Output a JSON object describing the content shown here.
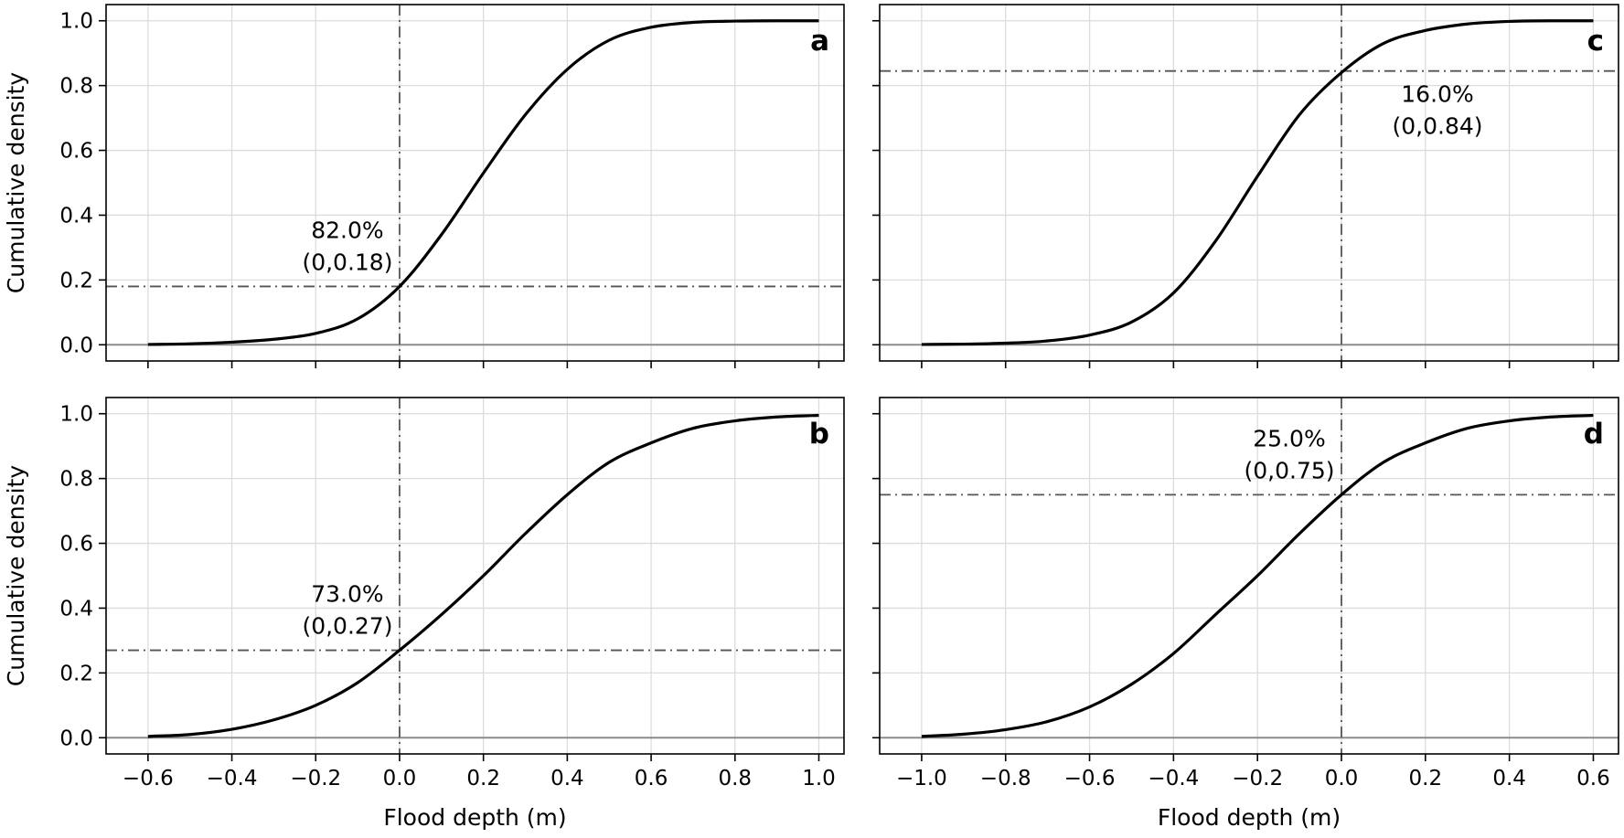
{
  "chart_data": [
    {
      "id": "a",
      "type": "line",
      "panel_label": "a",
      "xlabel": "",
      "ylabel": "Cumulative density",
      "xlim": [
        -0.7,
        1.06
      ],
      "ylim": [
        -0.05,
        1.05
      ],
      "xticks": [
        -0.6,
        -0.4,
        -0.2,
        0.0,
        0.2,
        0.4,
        0.6,
        0.8,
        1.0
      ],
      "xtick_labels": [
        "",
        "",
        "",
        "",
        "",
        "",
        "",
        "",
        ""
      ],
      "yticks": [
        0.0,
        0.2,
        0.4,
        0.6,
        0.8,
        1.0
      ],
      "ytick_labels": [
        "0.0",
        "0.2",
        "0.4",
        "0.6",
        "0.8",
        "1.0"
      ],
      "grid": true,
      "series": [
        {
          "x": [
            -0.6,
            -0.5,
            -0.4,
            -0.3,
            -0.2,
            -0.1,
            0.0,
            0.1,
            0.2,
            0.3,
            0.4,
            0.5,
            0.6,
            0.7,
            0.8,
            0.9,
            1.0
          ],
          "y": [
            0.001,
            0.003,
            0.008,
            0.017,
            0.035,
            0.08,
            0.18,
            0.34,
            0.53,
            0.71,
            0.85,
            0.94,
            0.98,
            0.995,
            0.999,
            1.0,
            1.0
          ]
        }
      ],
      "threshold_x": 0.0,
      "threshold_y": 0.18,
      "annotation": {
        "percent": "82.0%",
        "point": "(0,0.18)",
        "position": "above-left"
      }
    },
    {
      "id": "b",
      "type": "line",
      "panel_label": "b",
      "xlabel": "Flood depth (m)",
      "ylabel": "Cumulative density",
      "xlim": [
        -0.7,
        1.06
      ],
      "ylim": [
        -0.05,
        1.05
      ],
      "xticks": [
        -0.6,
        -0.4,
        -0.2,
        0.0,
        0.2,
        0.4,
        0.6,
        0.8,
        1.0
      ],
      "xtick_labels": [
        "−0.6",
        "−0.4",
        "−0.2",
        "0.0",
        "0.2",
        "0.4",
        "0.6",
        "0.8",
        "1.0"
      ],
      "yticks": [
        0.0,
        0.2,
        0.4,
        0.6,
        0.8,
        1.0
      ],
      "ytick_labels": [
        "0.0",
        "0.2",
        "0.4",
        "0.6",
        "0.8",
        "1.0"
      ],
      "grid": true,
      "series": [
        {
          "x": [
            -0.6,
            -0.5,
            -0.4,
            -0.3,
            -0.2,
            -0.1,
            0.0,
            0.1,
            0.2,
            0.3,
            0.4,
            0.5,
            0.6,
            0.7,
            0.8,
            0.9,
            1.0
          ],
          "y": [
            0.004,
            0.01,
            0.026,
            0.055,
            0.1,
            0.17,
            0.27,
            0.38,
            0.5,
            0.63,
            0.75,
            0.85,
            0.91,
            0.955,
            0.978,
            0.99,
            0.995
          ]
        }
      ],
      "threshold_x": 0.0,
      "threshold_y": 0.27,
      "annotation": {
        "percent": "73.0%",
        "point": "(0,0.27)",
        "position": "above-left"
      }
    },
    {
      "id": "c",
      "type": "line",
      "panel_label": "c",
      "xlabel": "",
      "ylabel": "",
      "xlim": [
        -1.1,
        0.66
      ],
      "ylim": [
        -0.05,
        1.05
      ],
      "xticks": [
        -1.0,
        -0.8,
        -0.6,
        -0.4,
        -0.2,
        0.0,
        0.2,
        0.4,
        0.6
      ],
      "xtick_labels": [
        "",
        "",
        "",
        "",
        "",
        "",
        "",
        "",
        ""
      ],
      "yticks": [
        0.0,
        0.2,
        0.4,
        0.6,
        0.8,
        1.0
      ],
      "ytick_labels": [
        "",
        "",
        "",
        "",
        "",
        ""
      ],
      "grid": true,
      "series": [
        {
          "x": [
            -1.0,
            -0.9,
            -0.8,
            -0.7,
            -0.6,
            -0.5,
            -0.4,
            -0.3,
            -0.2,
            -0.1,
            0.0,
            0.1,
            0.2,
            0.3,
            0.4,
            0.5,
            0.6
          ],
          "y": [
            0.001,
            0.002,
            0.005,
            0.012,
            0.03,
            0.07,
            0.16,
            0.32,
            0.52,
            0.71,
            0.84,
            0.93,
            0.97,
            0.99,
            0.998,
            1.0,
            1.0
          ]
        }
      ],
      "threshold_x": 0.0,
      "threshold_y": 0.845,
      "annotation": {
        "percent": "16.0%",
        "point": "(0,0.84)",
        "position": "below-right"
      }
    },
    {
      "id": "d",
      "type": "line",
      "panel_label": "d",
      "xlabel": "Flood depth (m)",
      "ylabel": "",
      "xlim": [
        -1.1,
        0.66
      ],
      "ylim": [
        -0.05,
        1.05
      ],
      "xticks": [
        -1.0,
        -0.8,
        -0.6,
        -0.4,
        -0.2,
        0.0,
        0.2,
        0.4,
        0.6
      ],
      "xtick_labels": [
        "−1.0",
        "−0.8",
        "−0.6",
        "−0.4",
        "−0.2",
        "0.0",
        "0.2",
        "0.4",
        "0.6"
      ],
      "yticks": [
        0.0,
        0.2,
        0.4,
        0.6,
        0.8,
        1.0
      ],
      "ytick_labels": [
        "",
        "",
        "",
        "",
        "",
        ""
      ],
      "grid": true,
      "series": [
        {
          "x": [
            -1.0,
            -0.9,
            -0.8,
            -0.7,
            -0.6,
            -0.5,
            -0.4,
            -0.3,
            -0.2,
            -0.1,
            0.0,
            0.1,
            0.2,
            0.3,
            0.4,
            0.5,
            0.6
          ],
          "y": [
            0.004,
            0.011,
            0.025,
            0.05,
            0.095,
            0.165,
            0.26,
            0.38,
            0.5,
            0.63,
            0.75,
            0.85,
            0.91,
            0.955,
            0.978,
            0.99,
            0.995
          ]
        }
      ],
      "threshold_x": 0.0,
      "threshold_y": 0.75,
      "annotation": {
        "percent": "25.0%",
        "point": "(0,0.75)",
        "position": "above-left"
      }
    }
  ]
}
